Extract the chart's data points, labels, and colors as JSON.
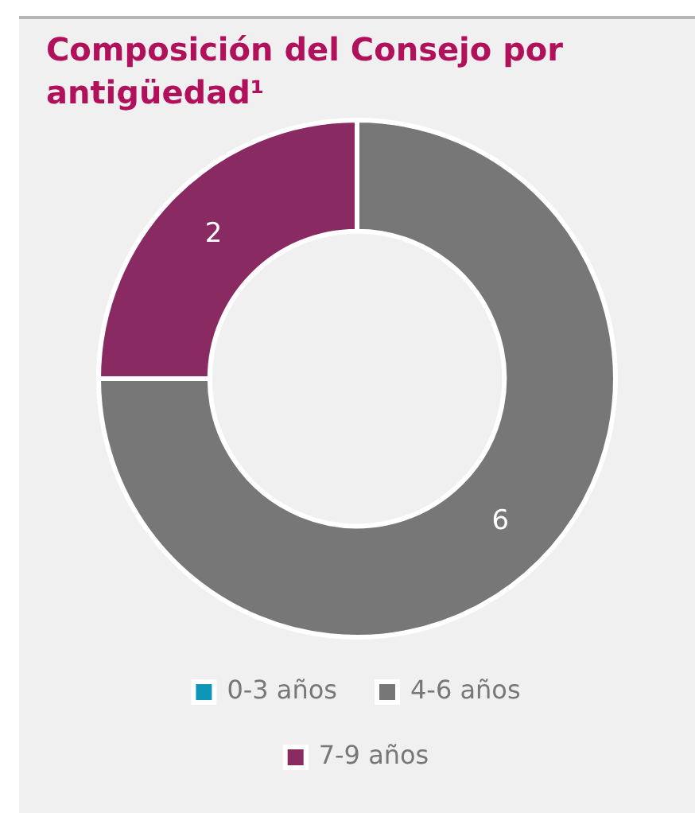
{
  "chart_data": {
    "type": "donut",
    "title": "Composición del Consejo por antigüedad¹",
    "categories": [
      "0-3 años",
      "4-6 años",
      "7-9 años"
    ],
    "values": [
      0,
      6,
      2
    ],
    "colors": [
      "#0e96b8",
      "#777777",
      "#8a2a62"
    ],
    "value_labels": [
      null,
      "6",
      "2"
    ],
    "legend": "bottom"
  }
}
